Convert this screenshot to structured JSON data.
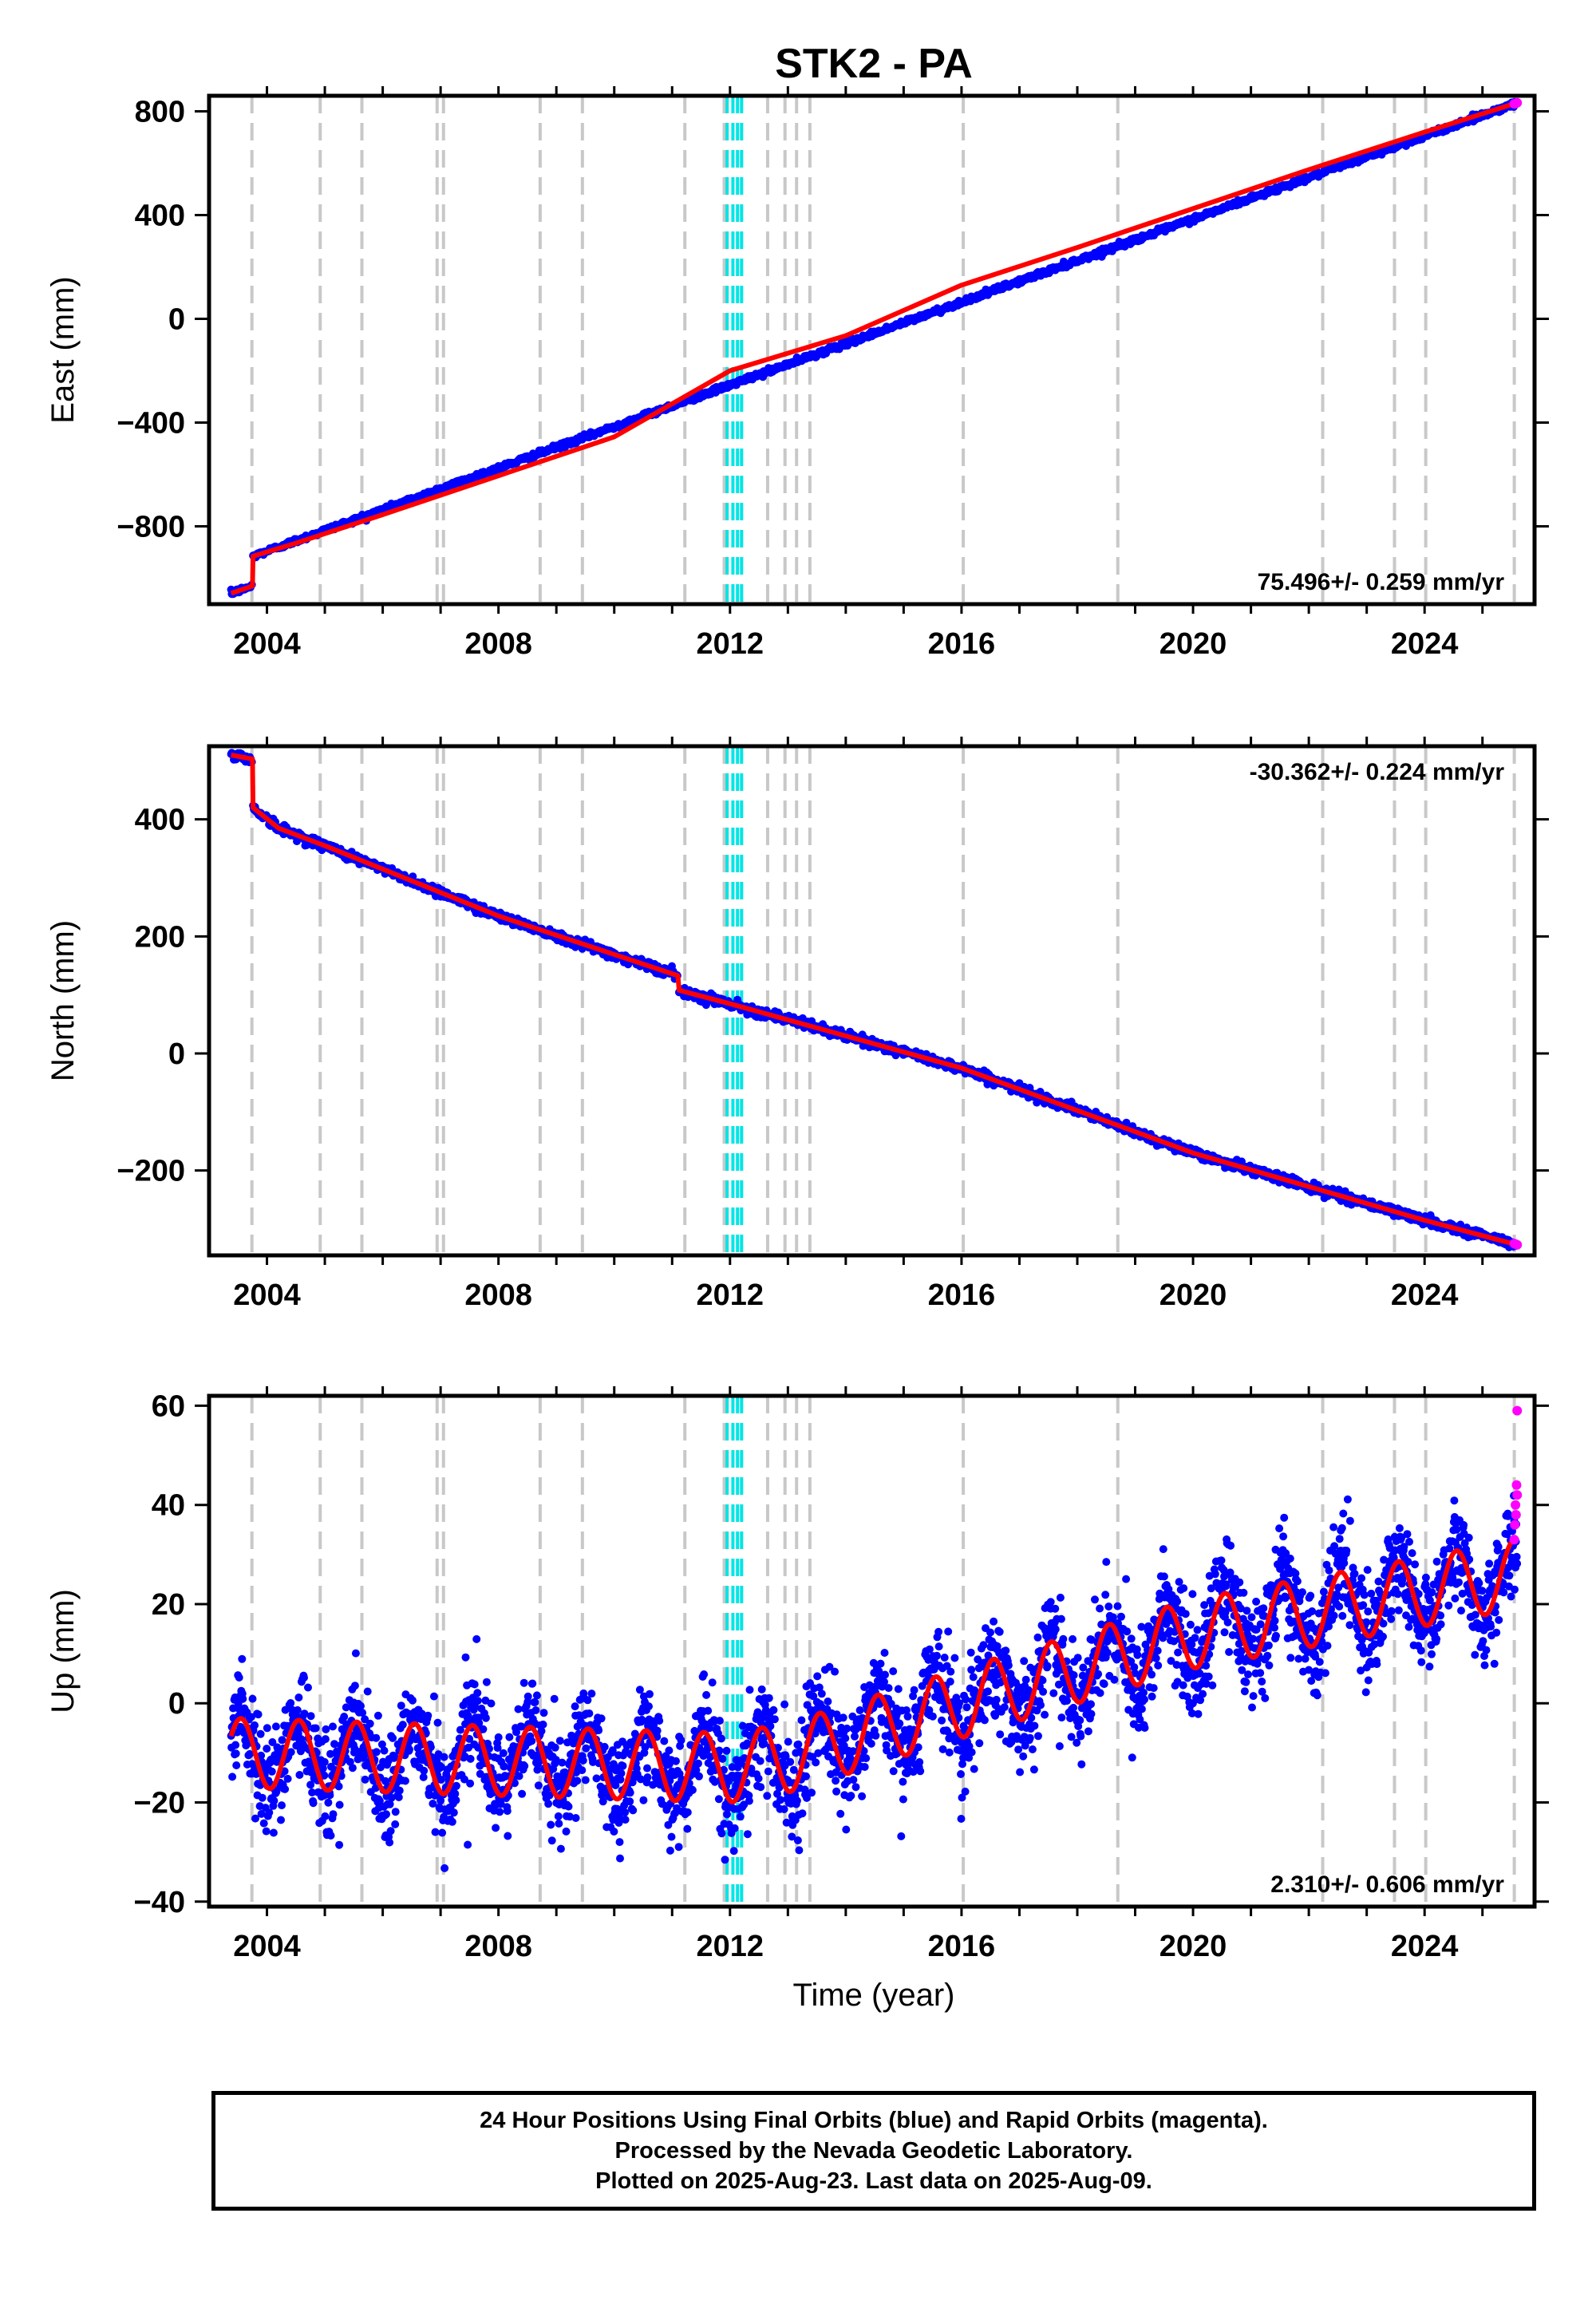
{
  "chart_data": [
    {
      "type": "scatter",
      "panel": "east",
      "title": "STK2 - PA",
      "ylabel": "East (mm)",
      "xlabel": "",
      "xlim": [
        2003.0,
        2025.9
      ],
      "ylim": [
        -1100,
        860
      ],
      "xticks": [
        "2004",
        "2008",
        "2012",
        "2016",
        "2020",
        "2024"
      ],
      "yticks": [
        "800",
        "400",
        "0",
        "-400",
        "-800"
      ],
      "rate_label": "75.496+/- 0.259 mm/yr",
      "grid": false,
      "series": [
        {
          "color": "#0000ff",
          "description_key": "final_orbits",
          "model": {
            "segments": [
              {
                "x": [
                  2003.38,
                  2003.75
                ],
                "y": [
                  -1058,
                  -1030
                ]
              },
              {
                "x": [
                  2003.76,
                  2025.6
                ],
                "y": [
                  -915,
                  833
                ]
              }
            ],
            "noise_mm": 5
          }
        },
        {
          "color": "#ff00ff",
          "description_key": "rapid_orbits",
          "x": [
            2025.55,
            2025.58,
            2025.6
          ],
          "y": [
            829,
            831,
            833
          ]
        },
        {
          "color": "#ff0000",
          "description_key": "model_fit",
          "x": [
            2003.38,
            2003.75,
            2003.76,
            2004.5,
            2006.0,
            2008.0,
            2010.0,
            2012.0,
            2014.0,
            2016.0,
            2018.0,
            2020.0,
            2022.0,
            2024.0,
            2025.6
          ],
          "y": [
            -1058,
            -1030,
            -915,
            -865,
            -755,
            -605,
            -455,
            -200,
            -65,
            130,
            275,
            425,
            575,
            720,
            833
          ]
        }
      ]
    },
    {
      "type": "scatter",
      "panel": "north",
      "ylabel": "North (mm)",
      "xlabel": "",
      "xlim": [
        2003.0,
        2025.9
      ],
      "ylim": [
        -345,
        525
      ],
      "xticks": [
        "2004",
        "2008",
        "2012",
        "2016",
        "2020",
        "2024"
      ],
      "yticks": [
        "400",
        "200",
        "0",
        "-200"
      ],
      "rate_label": "-30.362+/- 0.224 mm/yr",
      "grid": false,
      "series": [
        {
          "color": "#0000ff",
          "description_key": "final_orbits",
          "model": {
            "segments": [
              {
                "x": [
                  2003.38,
                  2003.75
                ],
                "y": [
                  510,
                  503
                ]
              },
              {
                "x": [
                  2003.76,
                  2004.2,
                  2005.0,
                  2008.0,
                  2011.1
                ],
                "y": [
                  420,
                  385,
                  355,
                  235,
                  133
                ]
              },
              {
                "x": [
                  2011.12,
                  2012.0,
                  2016.0,
                  2020.0,
                  2024.0,
                  2025.6
                ],
                "y": [
                  108,
                  85,
                  -25,
                  -170,
                  -285,
                  -327
                ]
              }
            ],
            "noise_mm": 4
          }
        },
        {
          "color": "#ff00ff",
          "description_key": "rapid_orbits",
          "x": [
            2025.55,
            2025.58,
            2025.6
          ],
          "y": [
            -325,
            -326,
            -327
          ]
        },
        {
          "color": "#ff0000",
          "description_key": "model_fit",
          "x": [
            2003.38,
            2003.75,
            2003.76,
            2004.2,
            2005.0,
            2008.0,
            2011.1,
            2011.12,
            2012.0,
            2016.0,
            2020.0,
            2024.0,
            2025.6
          ],
          "y": [
            510,
            503,
            420,
            385,
            355,
            235,
            133,
            108,
            85,
            -25,
            -170,
            -285,
            -327
          ]
        }
      ]
    },
    {
      "type": "scatter",
      "panel": "up",
      "ylabel": "Up (mm)",
      "xlabel": "Time (year)",
      "xlim": [
        2003.0,
        2025.9
      ],
      "ylim": [
        -41,
        62
      ],
      "xticks": [
        "2004",
        "2008",
        "2012",
        "2016",
        "2020",
        "2024"
      ],
      "yticks": [
        "60",
        "40",
        "20",
        "0",
        "-20",
        "-40"
      ],
      "rate_label": "2.310+/- 0.606 mm/yr",
      "grid": false,
      "series": [
        {
          "color": "#0000ff",
          "description_key": "final_orbits",
          "model": {
            "trend": {
              "x": [
                2003.38,
                2012.0,
                2013.0,
                2016.0,
                2020.0,
                2025.6
              ],
              "y": [
                -10,
                -13,
                -11,
                0,
                14,
                26
              ]
            },
            "annual_amplitude_mm": 7,
            "peak_phase_year": 0.55,
            "noise_mm": 5
          }
        },
        {
          "color": "#ff00ff",
          "description_key": "rapid_orbits",
          "x": [
            2025.55,
            2025.56,
            2025.57,
            2025.58,
            2025.59,
            2025.6,
            2025.6
          ],
          "y": [
            33,
            36,
            40,
            38,
            44,
            42,
            59
          ]
        },
        {
          "color": "#ff0000",
          "description_key": "model_fit",
          "model": {
            "trend": {
              "x": [
                2003.38,
                2012.0,
                2013.0,
                2016.0,
                2020.0,
                2025.6
              ],
              "y": [
                -10,
                -13,
                -11,
                0,
                14,
                26
              ]
            },
            "annual_amplitude_mm": 7,
            "peak_phase_year": 0.55
          }
        }
      ]
    }
  ],
  "vertical_lines": {
    "gray_years": [
      2003.74,
      2004.92,
      2005.64,
      2006.94,
      2007.05,
      2008.72,
      2009.45,
      2011.22,
      2011.9,
      2012.65,
      2012.95,
      2013.15,
      2013.38,
      2016.03,
      2018.7,
      2022.24,
      2023.48,
      2024.02,
      2025.55
    ],
    "cyan_years": [
      2011.95,
      2012.05,
      2012.13,
      2012.2
    ],
    "gray_color": "#c8c8c8",
    "cyan_color": "#00e5e5"
  },
  "footer": {
    "line1": "24 Hour Positions Using Final Orbits (blue) and Rapid Orbits (magenta).",
    "line2": "Processed by the Nevada Geodetic Laboratory.",
    "line3": "Plotted on 2025-Aug-23. Last data on 2025-Aug-09."
  }
}
